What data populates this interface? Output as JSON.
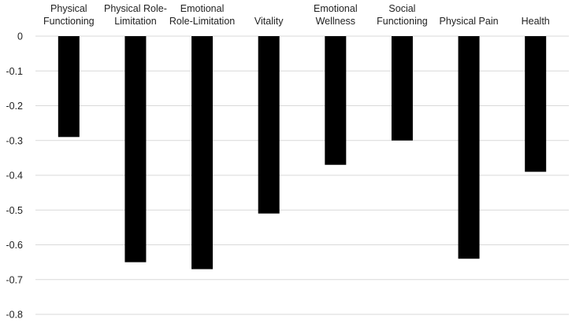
{
  "chart_data": {
    "type": "bar",
    "categories": [
      [
        "Physical",
        "Functioning"
      ],
      [
        "Physical Role-",
        "Limitation"
      ],
      [
        "Emotional",
        "Role-Limitation"
      ],
      [
        "Vitality"
      ],
      [
        "Emotional",
        "Wellness"
      ],
      [
        "Social",
        "Functioning"
      ],
      [
        "Physical Pain"
      ],
      [
        "Health"
      ]
    ],
    "values": [
      -0.29,
      -0.65,
      -0.67,
      -0.51,
      -0.37,
      -0.3,
      -0.64,
      -0.39
    ],
    "title": "",
    "xlabel": "",
    "ylabel": "",
    "ylim": [
      -0.8,
      0
    ],
    "yticks": [
      0,
      -0.1,
      -0.2,
      -0.3,
      -0.4,
      -0.5,
      -0.6,
      -0.7,
      -0.8
    ],
    "ytick_labels": [
      "0",
      "-0.1",
      "-0.2",
      "-0.3",
      "-0.4",
      "-0.5",
      "-0.6",
      "-0.7",
      "-0.8"
    ],
    "grid": "horizontal",
    "legend": "none",
    "x_labels_position": "top",
    "colors": {
      "bar": "#000000",
      "grid": "#d9d9d9",
      "text": "#222222"
    }
  }
}
